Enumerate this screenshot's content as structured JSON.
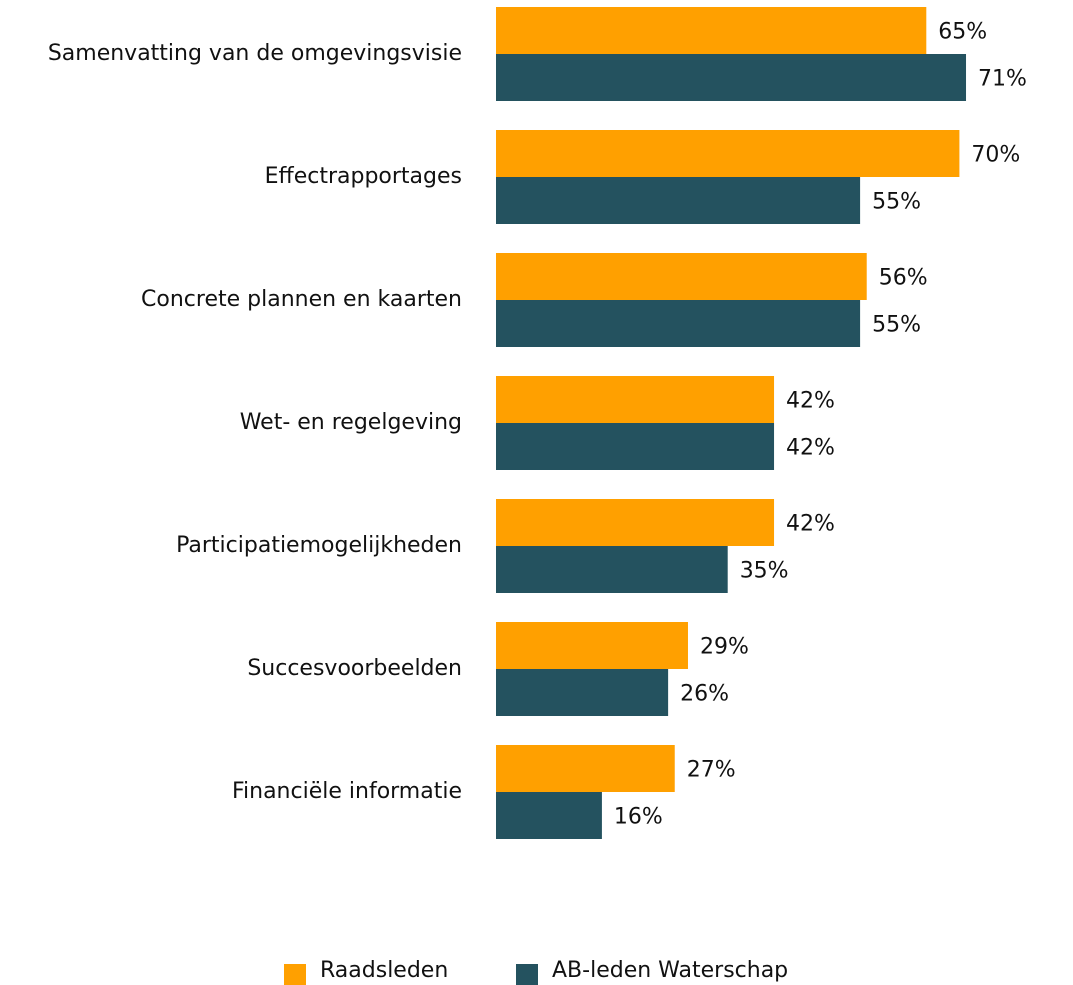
{
  "chart_data": {
    "type": "bar",
    "orientation": "horizontal",
    "categories": [
      "Samenvatting van de omgevingsvisie",
      "Effectrapportages",
      "Concrete plannen en kaarten",
      "Wet- en regelgeving",
      "Participatiemogelijkheden",
      "Succesvoorbeelden",
      "Financiële informatie"
    ],
    "series": [
      {
        "name": "Raadsleden",
        "color": "#ffa000",
        "values": [
          65,
          70,
          56,
          42,
          42,
          29,
          27
        ],
        "value_labels": [
          "65%",
          "70%",
          "56%",
          "42%",
          "42%",
          "29%",
          "27%"
        ]
      },
      {
        "name": "AB-leden Waterschap",
        "color": "#24525f",
        "values": [
          71,
          55,
          55,
          42,
          35,
          26,
          16
        ],
        "value_labels": [
          "71%",
          "55%",
          "55%",
          "42%",
          "35%",
          "26%",
          "16%"
        ]
      }
    ],
    "legend": "bottom"
  }
}
